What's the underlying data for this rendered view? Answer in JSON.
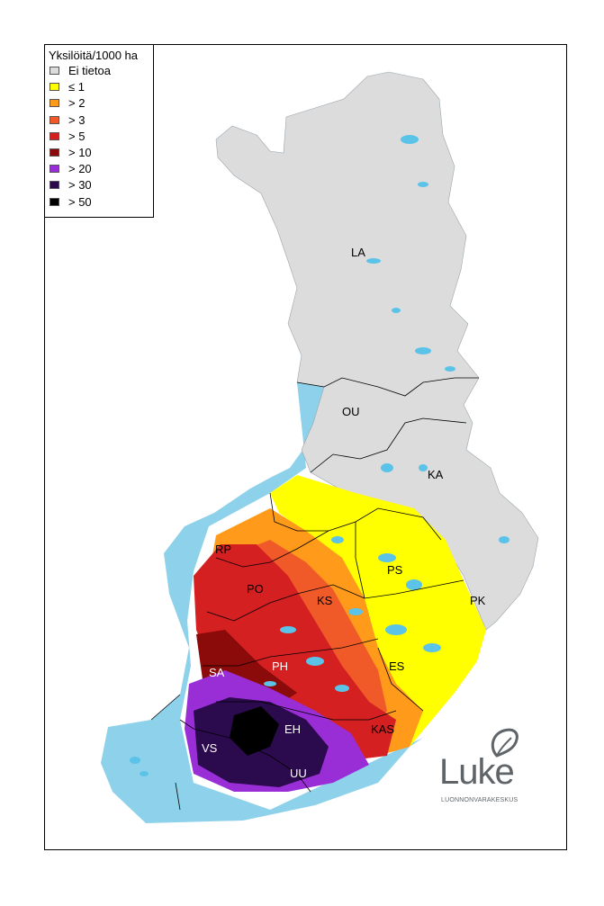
{
  "legend": {
    "title": "Yksilöitä/1000 ha",
    "items": [
      {
        "label": "Ei tietoa",
        "color": "#dcdcdc"
      },
      {
        "label": "≤ 1",
        "color": "#ffff00"
      },
      {
        "label": "> 2",
        "color": "#ff9a1a"
      },
      {
        "label": "> 3",
        "color": "#f05a28"
      },
      {
        "label": "> 5",
        "color": "#d42020"
      },
      {
        "label": "> 10",
        "color": "#8b0a0a"
      },
      {
        "label": "> 20",
        "color": "#9a2ed6"
      },
      {
        "label": "> 30",
        "color": "#2b0a4d"
      },
      {
        "label": "> 50",
        "color": "#000000"
      }
    ]
  },
  "colors": {
    "sea": "#8ed1ea",
    "lakes": "#5bc3e8",
    "nodata": "#dcdcdc",
    "border": "#000000"
  },
  "regions": [
    {
      "code": "LA",
      "text_color": "#000000"
    },
    {
      "code": "OU",
      "text_color": "#000000"
    },
    {
      "code": "KA",
      "text_color": "#000000"
    },
    {
      "code": "RP",
      "text_color": "#000000"
    },
    {
      "code": "PS",
      "text_color": "#000000"
    },
    {
      "code": "PO",
      "text_color": "#000000"
    },
    {
      "code": "KS",
      "text_color": "#000000"
    },
    {
      "code": "PK",
      "text_color": "#000000"
    },
    {
      "code": "SA",
      "text_color": "#ffffff"
    },
    {
      "code": "PH",
      "text_color": "#ffffff"
    },
    {
      "code": "ES",
      "text_color": "#000000"
    },
    {
      "code": "EH",
      "text_color": "#ffffff"
    },
    {
      "code": "KAS",
      "text_color": "#000000"
    },
    {
      "code": "VS",
      "text_color": "#ffffff"
    },
    {
      "code": "UU",
      "text_color": "#ffffff"
    }
  ],
  "logo": {
    "word": "Luke",
    "subtitle": "LUONNONVARAKESKUS"
  }
}
